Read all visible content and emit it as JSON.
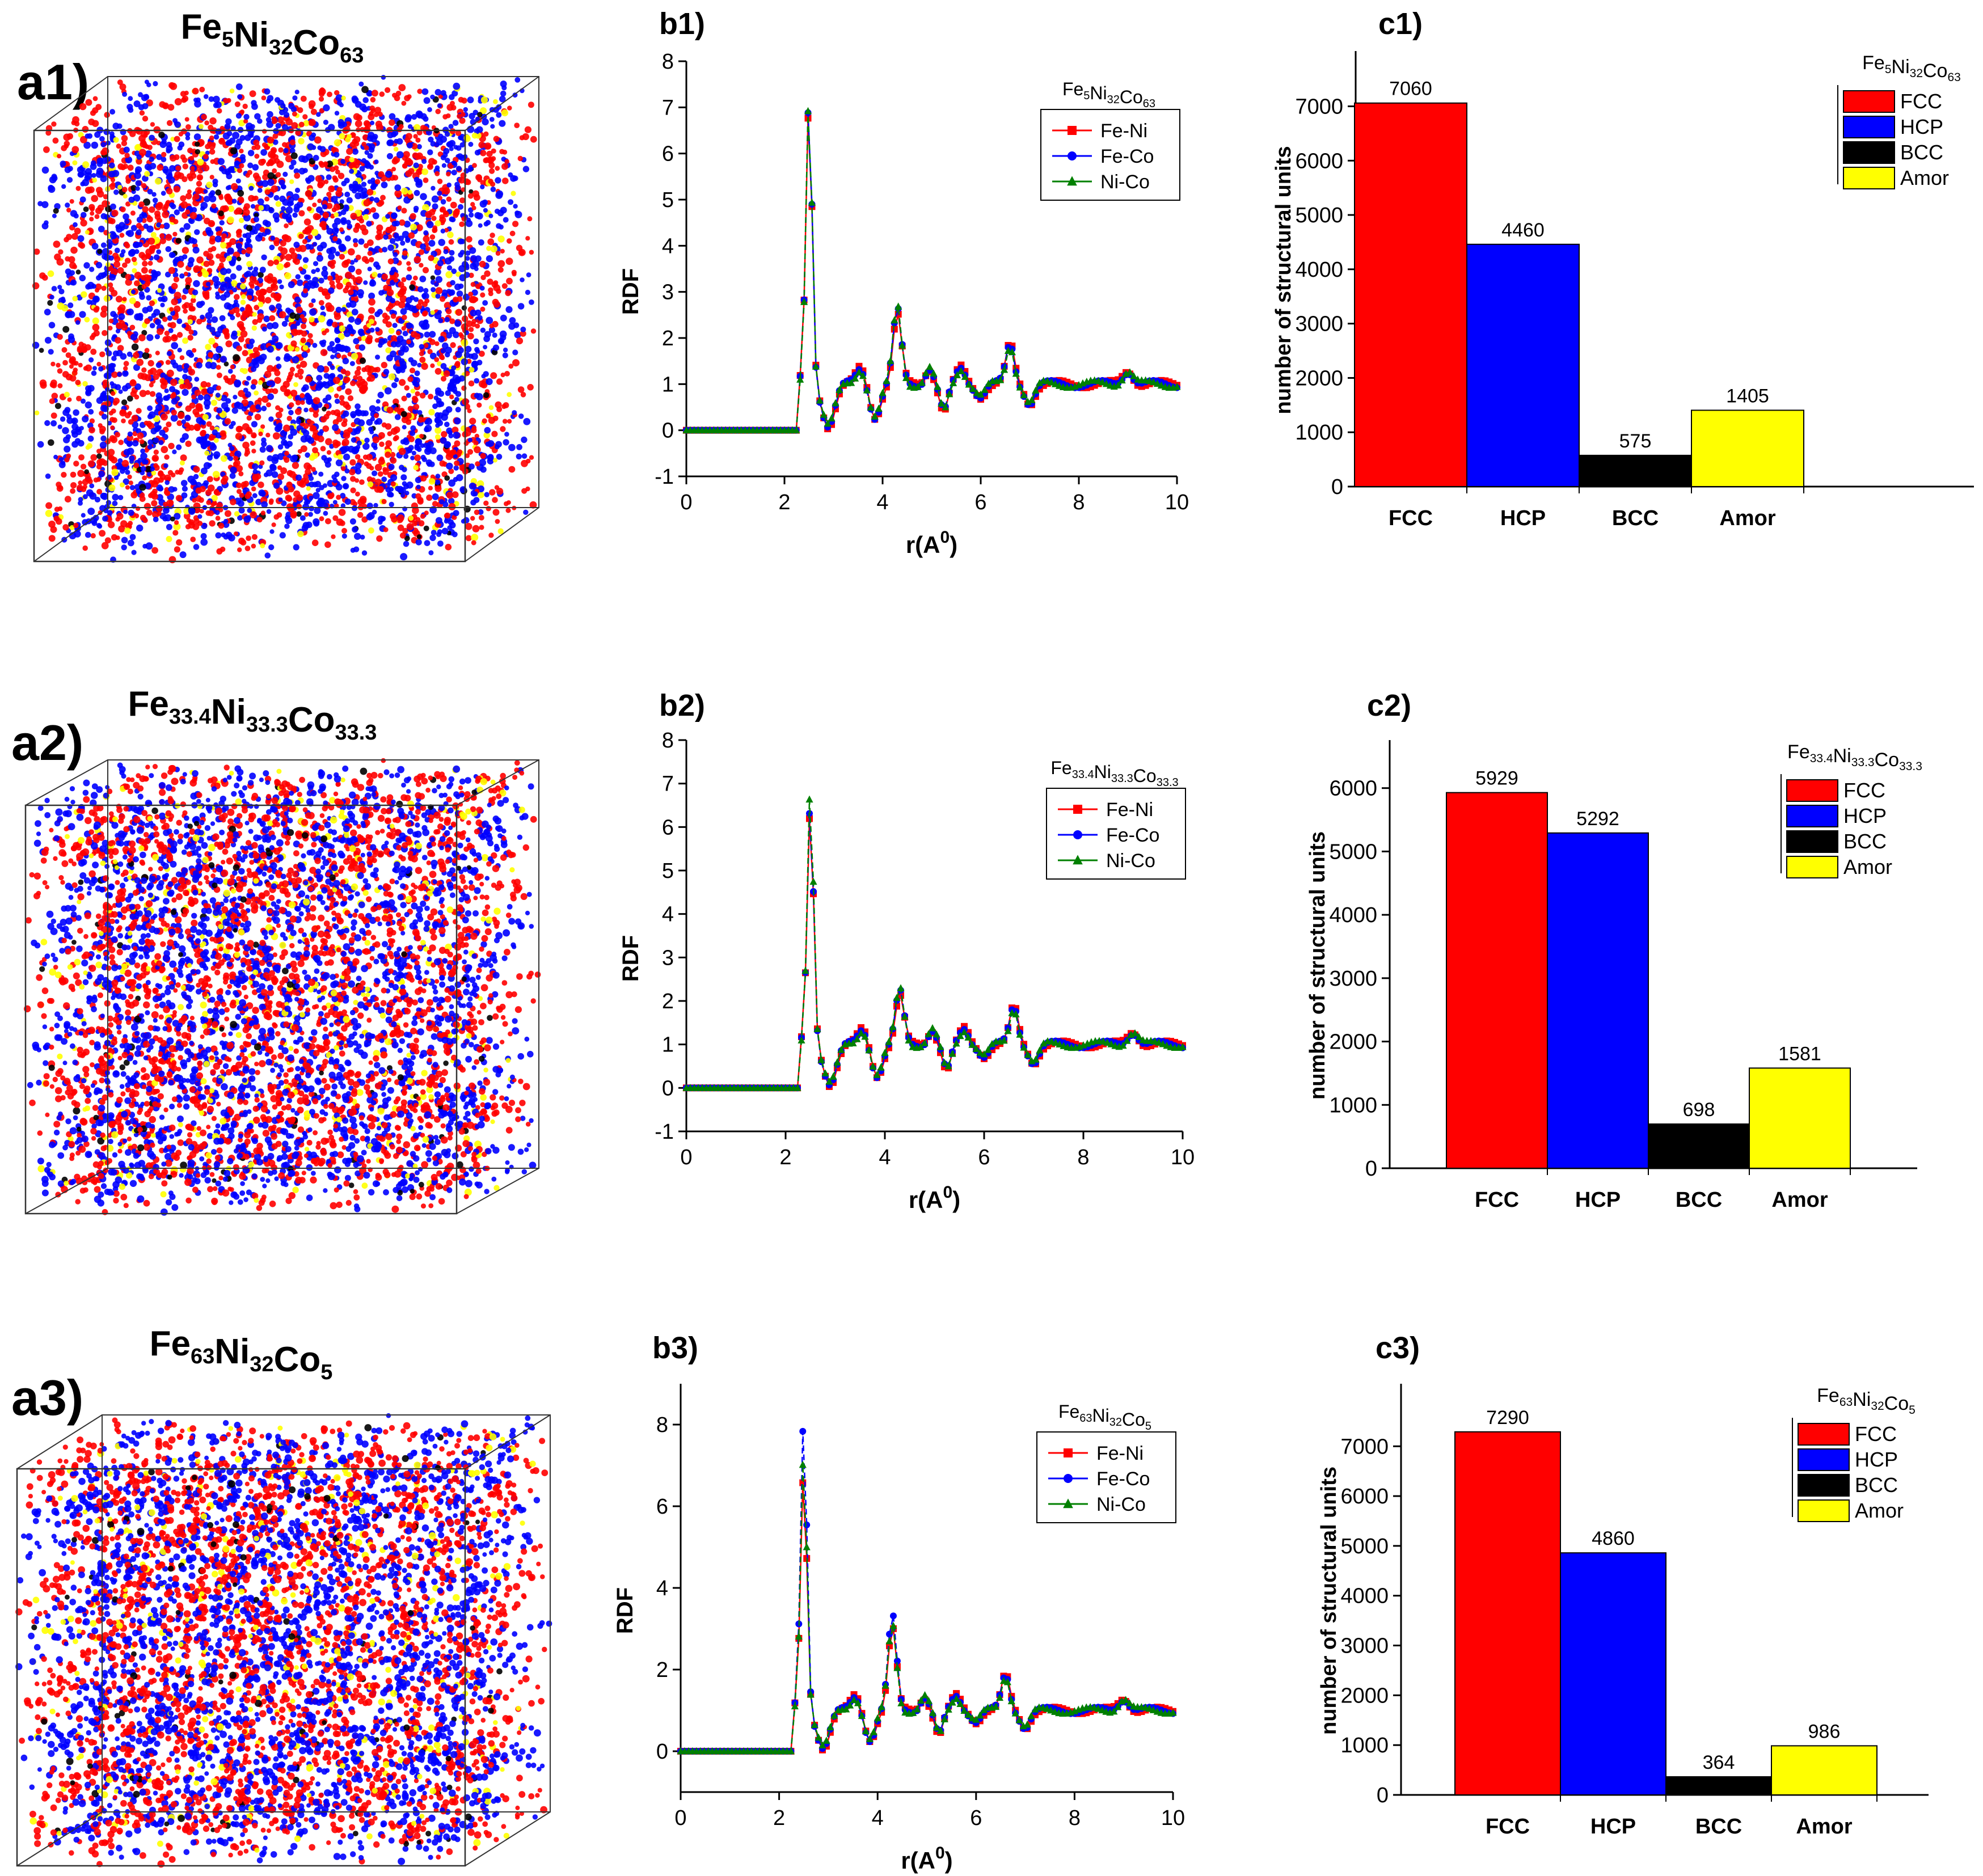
{
  "colors": {
    "red": "#ff0000",
    "blue": "#0000ff",
    "black": "#000000",
    "yellow": "#ffff00",
    "green": "#008000"
  },
  "rows": [
    {
      "a": {
        "label": "a1)",
        "formula": [
          [
            "Fe",
            "5"
          ],
          [
            "Ni",
            "32"
          ],
          [
            "Co",
            "63"
          ]
        ]
      },
      "b": {
        "label": "b1)",
        "legend_title": [
          [
            "Fe",
            "5"
          ],
          [
            "Ni",
            "32"
          ],
          [
            "Co",
            "63"
          ]
        ]
      },
      "c": {
        "label": "c1)",
        "legend_title": [
          [
            "Fe",
            "5"
          ],
          [
            "Ni",
            "32"
          ],
          [
            "Co",
            "63"
          ]
        ]
      }
    },
    {
      "a": {
        "label": "a2)",
        "formula": [
          [
            "Fe",
            "33.4"
          ],
          [
            "Ni",
            "33.3"
          ],
          [
            "Co",
            "33.3"
          ]
        ]
      },
      "b": {
        "label": "b2)",
        "legend_title": [
          [
            "Fe",
            "33.4"
          ],
          [
            "Ni",
            "33.3"
          ],
          [
            "Co",
            "33.3"
          ]
        ]
      },
      "c": {
        "label": "c2)",
        "legend_title": [
          [
            "Fe",
            "33.4"
          ],
          [
            "Ni",
            "33.3"
          ],
          [
            "Co",
            "33.3"
          ]
        ]
      }
    },
    {
      "a": {
        "label": "a3)",
        "formula": [
          [
            "Fe",
            "63"
          ],
          [
            "Ni",
            "32"
          ],
          [
            "Co",
            "5"
          ]
        ]
      },
      "b": {
        "label": "b3)",
        "legend_title": [
          [
            "Fe",
            "63"
          ],
          [
            "Ni",
            "32"
          ],
          [
            "Co",
            "5"
          ]
        ]
      },
      "c": {
        "label": "c3)",
        "legend_title": [
          [
            "Fe",
            "63"
          ],
          [
            "Ni",
            "32"
          ],
          [
            "Co",
            "5"
          ]
        ]
      }
    }
  ],
  "chart_data": [
    {
      "id": "b1",
      "type": "line",
      "xlabel": "r(A",
      "xlabel_sup": "0",
      "xlabel_end": ")",
      "ylabel": "RDF",
      "xlim": [
        0,
        10
      ],
      "ylim": [
        -1,
        8
      ],
      "xticks": [
        "0",
        "2",
        "4",
        "6",
        "8",
        "10"
      ],
      "yticks": [
        "-1",
        "0",
        "1",
        "2",
        "3",
        "4",
        "5",
        "6",
        "7",
        "8"
      ],
      "series": [
        {
          "name": "Fe-Ni",
          "marker": "square",
          "peak": 7.0,
          "p2": 2.7
        },
        {
          "name": "Fe-Co",
          "marker": "circle",
          "peak": 7.2,
          "p2": 2.8
        },
        {
          "name": "Ni-Co",
          "marker": "triangle",
          "peak": 7.3,
          "p2": 2.9
        }
      ]
    },
    {
      "id": "b2",
      "type": "line",
      "xlabel": "r(A",
      "xlabel_sup": "0",
      "xlabel_end": ")",
      "ylabel": "RDF",
      "xlim": [
        0,
        10
      ],
      "ylim": [
        -1,
        8
      ],
      "xticks": [
        "0",
        "2",
        "4",
        "6",
        "8",
        "10"
      ],
      "yticks": [
        "-1",
        "0",
        "1",
        "2",
        "3",
        "4",
        "5",
        "6",
        "7",
        "8"
      ],
      "series": [
        {
          "name": "Fe-Ni",
          "marker": "square",
          "peak": 6.4,
          "p2": 2.3
        },
        {
          "name": "Fe-Co",
          "marker": "circle",
          "peak": 6.6,
          "p2": 2.4
        },
        {
          "name": "Ni-Co",
          "marker": "triangle",
          "peak": 7.0,
          "p2": 2.5
        }
      ]
    },
    {
      "id": "b3",
      "type": "line",
      "xlabel": "r(A",
      "xlabel_sup": "0",
      "xlabel_end": ")",
      "ylabel": "RDF",
      "xlim": [
        0,
        10
      ],
      "ylim": [
        -1,
        9
      ],
      "xticks": [
        "0",
        "2",
        "4",
        "6",
        "8",
        "10"
      ],
      "yticks": [
        "0",
        "2",
        "4",
        "6",
        "8"
      ],
      "series": [
        {
          "name": "Fe-Ni",
          "marker": "square",
          "peak": 6.8,
          "p2": 3.2
        },
        {
          "name": "Fe-Co",
          "marker": "circle",
          "peak": 8.2,
          "p2": 3.5
        },
        {
          "name": "Ni-Co",
          "marker": "triangle",
          "peak": 7.4,
          "p2": 3.3
        }
      ]
    },
    {
      "id": "c1",
      "type": "bar",
      "ylabel": "number of structural units",
      "ylim": [
        0,
        7600
      ],
      "yticks": [
        0,
        1000,
        2000,
        3000,
        4000,
        5000,
        6000,
        7000
      ],
      "categories": [
        "FCC",
        "HCP",
        "BCC",
        "Amor"
      ],
      "values": [
        7060,
        4460,
        575,
        1405
      ],
      "value_labels": [
        "7060",
        "4460",
        "575",
        "1405"
      ]
    },
    {
      "id": "c2",
      "type": "bar",
      "ylabel": "number of structural units",
      "ylim": [
        0,
        6400
      ],
      "yticks": [
        0,
        1000,
        2000,
        3000,
        4000,
        5000,
        6000
      ],
      "categories": [
        "FCC",
        "HCP",
        "BCC",
        "Amor"
      ],
      "values": [
        5929,
        5292,
        698,
        1581
      ],
      "value_labels": [
        "5929",
        "5292",
        "698",
        "1581"
      ]
    },
    {
      "id": "c3",
      "type": "bar",
      "ylabel": "number of structural units",
      "ylim": [
        0,
        7800
      ],
      "yticks": [
        0,
        1000,
        2000,
        3000,
        4000,
        5000,
        6000,
        7000
      ],
      "categories": [
        "FCC",
        "HCP",
        "BCC",
        "Amor"
      ],
      "values": [
        7290,
        4860,
        364,
        986
      ],
      "value_labels": [
        "7290",
        "4860",
        "364",
        "986"
      ]
    }
  ]
}
